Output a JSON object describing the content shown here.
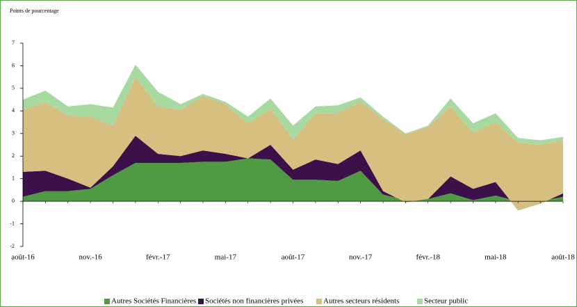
{
  "chart_data": {
    "type": "stacked_area",
    "y_label": "Points de pourcentage",
    "categories": [
      "août-16",
      null,
      null,
      "nov.-16",
      null,
      null,
      "févr.-17",
      null,
      null,
      "mai-17",
      null,
      null,
      "août-17",
      null,
      null,
      "nov.-17",
      null,
      null,
      "févr.-18",
      null,
      null,
      "mai-18",
      null,
      null,
      "août-18"
    ],
    "series": [
      {
        "name": "Autres Sociétés Financières",
        "color": "#4f9a43",
        "values": [
          0.2,
          0.45,
          0.45,
          0.55,
          1.15,
          1.7,
          1.7,
          1.7,
          1.75,
          1.75,
          1.9,
          1.85,
          0.95,
          0.95,
          0.9,
          1.35,
          0.3,
          0.05,
          0.1,
          0.35,
          0.05,
          0.25,
          0,
          0,
          0.2
        ]
      },
      {
        "name": "Sociétés non financières privées",
        "color": "#3c1149",
        "values": [
          1.1,
          0.9,
          0.55,
          0.05,
          0.4,
          1.2,
          0.4,
          0.3,
          0.5,
          0.35,
          0,
          0.65,
          0.45,
          0.9,
          0.75,
          0.9,
          0.15,
          -0.1,
          0,
          0.75,
          0.5,
          0.6,
          -0.4,
          -0.1,
          0.15
        ]
      },
      {
        "name": "Autres secteurs résidents",
        "color": "#d5c081",
        "values": [
          2.75,
          3.05,
          2.8,
          3.15,
          1.8,
          2.6,
          2.1,
          2.05,
          2.4,
          2.2,
          1.55,
          1.6,
          1.35,
          2.05,
          2.25,
          2.15,
          3.2,
          3.0,
          3.2,
          3.1,
          2.5,
          2.65,
          3.0,
          2.6,
          2.35
        ]
      },
      {
        "name": "Secteur public",
        "color": "#a8d9a0",
        "values": [
          0.45,
          0.5,
          0.4,
          0.55,
          0.8,
          0.55,
          0.65,
          0.25,
          0.1,
          0.1,
          0.3,
          0.45,
          0.6,
          0.3,
          0.35,
          0.2,
          0.1,
          0.05,
          0.05,
          0.35,
          0.4,
          0.4,
          0.2,
          0.2,
          0.15
        ]
      }
    ],
    "ylim": [
      -2,
      7
    ],
    "yticks": [
      -2,
      -1,
      0,
      1,
      2,
      3,
      4,
      5,
      6,
      7
    ]
  }
}
